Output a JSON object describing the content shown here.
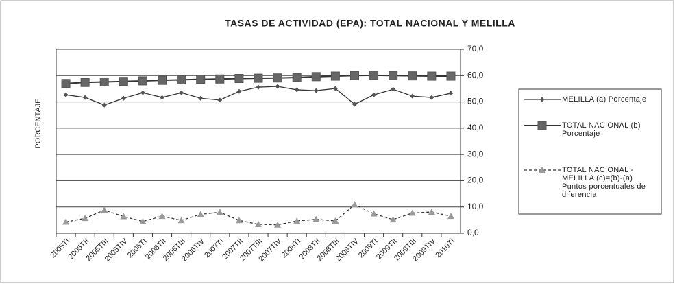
{
  "chart_data": {
    "type": "line",
    "title": "TASAS DE ACTIVIDAD (EPA): TOTAL NACIONAL Y MELILLA",
    "y_label": "PORCENTAJE",
    "categories": [
      "2005TI",
      "2005TII",
      "2005TIII",
      "2005TIV",
      "2006TI",
      "2006TII",
      "2006TIII",
      "2006TIV",
      "2007TI",
      "2007TII",
      "2007TIII",
      "2007TIV",
      "2008TI",
      "2008TII",
      "2008TIII",
      "2008TIV",
      "2009TI",
      "2009TII",
      "2009TIII",
      "2009TIV",
      "2010TI"
    ],
    "series": [
      {
        "name": "MELILLA (a) Porcentaje",
        "color": "#555555",
        "marker": "diamond",
        "dash": false,
        "values": [
          52.7,
          51.7,
          48.8,
          51.4,
          53.5,
          51.7,
          53.5,
          51.4,
          50.7,
          54.0,
          55.6,
          55.9,
          54.6,
          54.3,
          55.1,
          49.1,
          52.7,
          54.8,
          52.2,
          51.7,
          53.3
        ]
      },
      {
        "name": "TOTAL NACIONAL (b) Porcentaje",
        "color": "#555555",
        "marker": "square",
        "dash": false,
        "values": [
          57.0,
          57.4,
          57.6,
          57.8,
          58.0,
          58.2,
          58.4,
          58.6,
          58.7,
          58.9,
          59.0,
          59.1,
          59.3,
          59.6,
          59.8,
          60.0,
          60.1,
          60.0,
          59.9,
          59.8,
          59.8
        ]
      },
      {
        "name": "TOTAL NACIONAL - MELILLA (c)=(b)-(a) Puntos porcentuales de diferencia",
        "color": "#999999",
        "marker": "triangle",
        "dash": true,
        "values": [
          4.3,
          5.7,
          8.8,
          6.4,
          4.5,
          6.5,
          4.9,
          7.2,
          8.0,
          4.9,
          3.4,
          3.2,
          4.7,
          5.3,
          4.7,
          10.9,
          7.4,
          5.2,
          7.7,
          8.1,
          6.5
        ]
      }
    ],
    "ylim": [
      0,
      70
    ],
    "yticks": [
      {
        "value": 0,
        "label": "0,0"
      },
      {
        "value": 10,
        "label": "10,0"
      },
      {
        "value": 20,
        "label": "20,0"
      },
      {
        "value": 30,
        "label": "30,0"
      },
      {
        "value": 40,
        "label": "40,0"
      },
      {
        "value": 50,
        "label": "50,0"
      },
      {
        "value": 60,
        "label": "60,0"
      },
      {
        "value": 70,
        "label": "70,0"
      }
    ],
    "grid": true,
    "legend": "right"
  }
}
